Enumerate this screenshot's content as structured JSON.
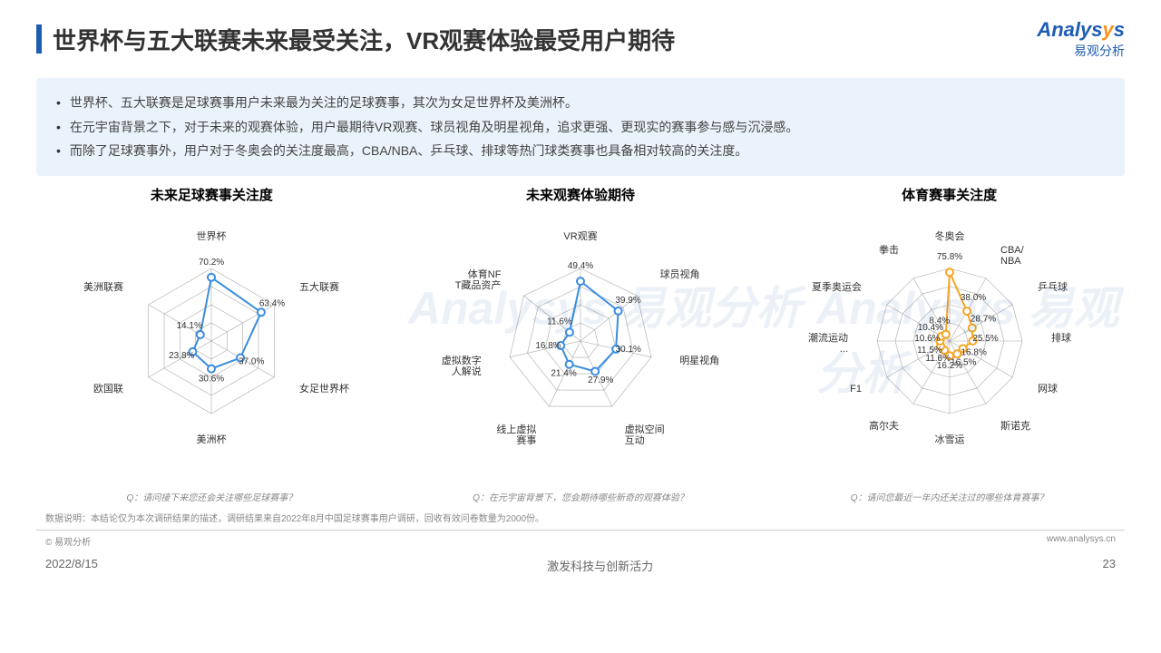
{
  "title": "世界杯与五大联赛未来最受关注，VR观赛体验最受用户期待",
  "logo": {
    "main": "Analysys",
    "sub": "易观分析"
  },
  "bullets": [
    "世界杯、五大联赛是足球赛事用户未来最为关注的足球赛事，其次为女足世界杯及美洲杯。",
    "在元宇宙背景之下，对于未来的观赛体验，用户最期待VR观赛、球员视角及明星视角，追求更强、更现实的赛事参与感与沉浸感。",
    "而除了足球赛事外，用户对于冬奥会的关注度最高，CBA/NBA、乒乓球、排球等热门球类赛事也具备相对较高的关注度。"
  ],
  "charts": [
    {
      "title": "未来足球赛事关注度",
      "type": "radar",
      "axes": [
        "世界杯",
        "五大联赛",
        "女足世界杯",
        "美洲杯",
        "欧国联",
        "美洲联赛"
      ],
      "values": [
        70.2,
        63.4,
        37.0,
        30.6,
        23.8,
        14.1
      ],
      "max": 80,
      "rings": 4,
      "color": "#3a8dde",
      "grid_color": "#999",
      "question": "Q：请问接下来您还会关注哪些足球赛事？"
    },
    {
      "title": "未来观赛体验期待",
      "type": "radar",
      "axes": [
        "VR观赛",
        "球员视角",
        "明星视角",
        "虚拟空间互动",
        "线上虚拟赛事",
        "虚拟数字人解说",
        "体育NFT藏品资产"
      ],
      "values": [
        49.4,
        39.9,
        30.1,
        27.9,
        21.4,
        16.8,
        11.6
      ],
      "max": 60,
      "rings": 4,
      "color": "#3a8dde",
      "grid_color": "#999",
      "question": "Q：在元宇宙背景下，您会期待哪些新奇的观赛体验？"
    },
    {
      "title": "体育赛事关注度",
      "type": "radar",
      "axes": [
        "冬奥会",
        "CBA/NBA",
        "乒乓球",
        "排球",
        "网球",
        "斯诺克",
        "冰雪运",
        "高尔夫",
        "F1",
        "潮流运动...",
        "夏季奥运会",
        "拳击"
      ],
      "values": [
        75.8,
        38.0,
        28.7,
        25.5,
        16.8,
        16.5,
        16.2,
        11.6,
        11.5,
        10.6,
        10.4,
        8.4
      ],
      "max": 80,
      "rings": 4,
      "color": "#f5a623",
      "grid_color": "#999",
      "question": "Q：请问您最近一年内还关注过的哪些体育赛事？"
    }
  ],
  "data_note": "数据说明：本结论仅为本次调研结果的描述，调研结果来自2022年8月中国足球赛事用户调研，回收有效问卷数量为2000份。",
  "copyright": "© 易观分析",
  "website": "www.analysys.cn",
  "date": "2022/8/15",
  "slogan": "激发科技与创新活力",
  "page": "23",
  "watermark": "Analysys 易观分析",
  "chart_style": {
    "label_fontsize": 11,
    "value_fontsize": 10,
    "bg": "#ffffff",
    "marker_size": 4
  }
}
